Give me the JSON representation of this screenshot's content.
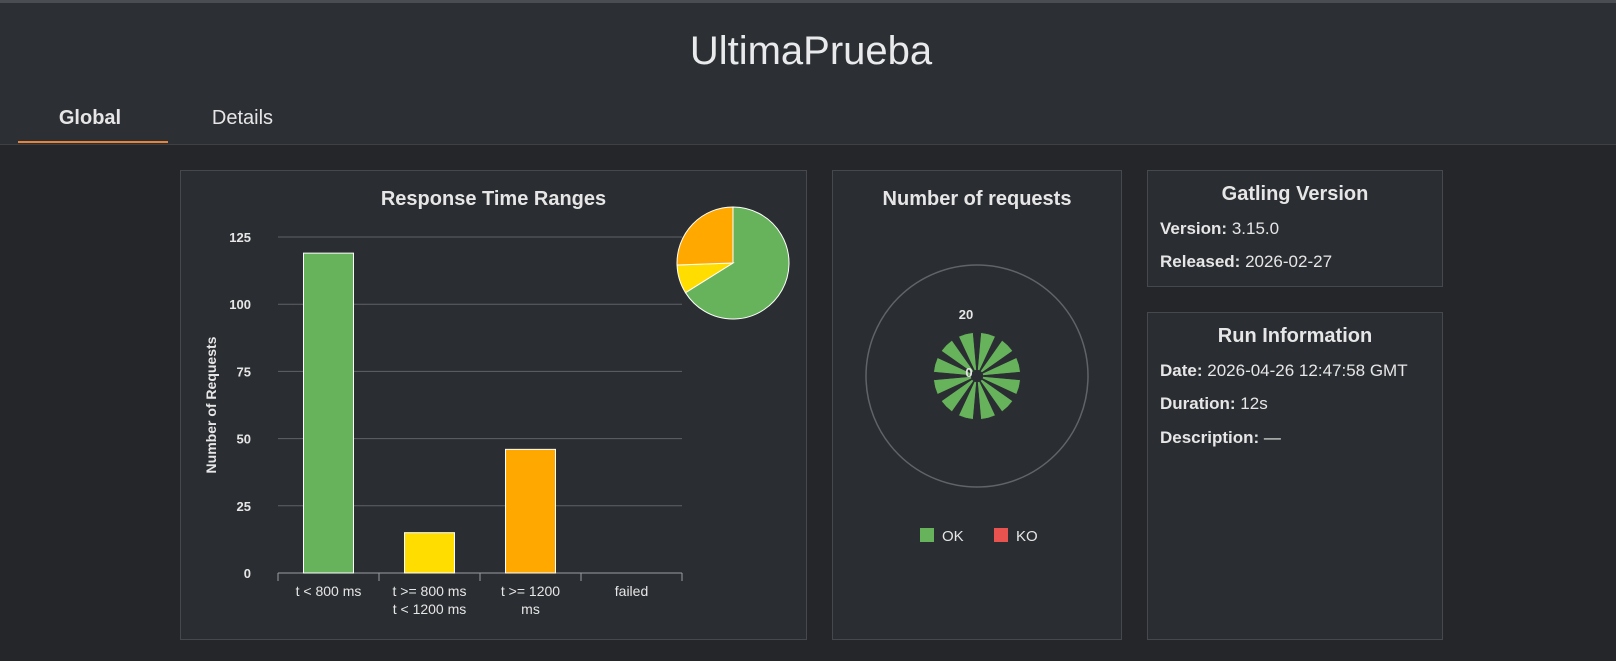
{
  "header": {
    "title": "UltimaPrueba",
    "tabs": [
      {
        "label": "Global",
        "active": true
      },
      {
        "label": "Details",
        "active": false
      }
    ],
    "accent_color": "#e8843a"
  },
  "response_time_panel": {
    "title": "Response Time Ranges"
  },
  "requests_panel": {
    "title": "Number of requests",
    "legend": [
      {
        "label": "OK",
        "color": "#67b35c"
      },
      {
        "label": "KO",
        "color": "#e8524f"
      }
    ]
  },
  "gatling_version": {
    "title": "Gatling Version",
    "version_key": "Version:",
    "version_value": "3.15.0",
    "released_key": "Released:",
    "released_value": "2026-02-27"
  },
  "run_information": {
    "title": "Run Information",
    "date_key": "Date:",
    "date_value": "2026-04-26 12:47:58 GMT",
    "duration_key": "Duration:",
    "duration_value": "12s",
    "description_key": "Description:",
    "description_value": "—"
  },
  "chart_data": [
    {
      "type": "bar",
      "title": "Response Time Ranges",
      "ylabel": "Number of Requests",
      "xlabel": "",
      "categories": [
        "t < 800 ms",
        "t >= 800 ms t < 1200 ms",
        "t >= 1200 ms",
        "failed"
      ],
      "category_lines": [
        [
          "t < 800 ms"
        ],
        [
          "t >= 800 ms",
          "t < 1200 ms"
        ],
        [
          "t >= 1200",
          "ms"
        ],
        [
          "failed"
        ]
      ],
      "values": [
        119,
        15,
        46,
        0
      ],
      "colors": [
        "#67b35c",
        "#ffdd00",
        "#ffa900",
        "#e8524f"
      ],
      "ylim": [
        0,
        125
      ],
      "yticks": [
        0,
        25,
        50,
        75,
        100,
        125
      ],
      "grid": true,
      "inset_pie": {
        "values": [
          119,
          15,
          46,
          0
        ],
        "colors": [
          "#67b35c",
          "#ffdd00",
          "#ffa900",
          "#e8524f"
        ]
      }
    },
    {
      "type": "pie",
      "title": "Number of requests",
      "radial_tick_labels": [
        "0",
        "20"
      ],
      "series": [
        {
          "name": "OK",
          "values": [
            15,
            15,
            15,
            15,
            15,
            15,
            15,
            15,
            15,
            15,
            15,
            15
          ]
        },
        {
          "name": "KO",
          "values": [
            0,
            0,
            0,
            0,
            0,
            0,
            0,
            0,
            0,
            0,
            0,
            0
          ]
        }
      ]
    }
  ]
}
